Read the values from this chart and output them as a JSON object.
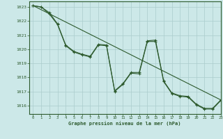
{
  "title": "Graphe pression niveau de la mer (hPa)",
  "background_color": "#cce8e8",
  "grid_color": "#aacccc",
  "line_color": "#2d5a2d",
  "xlim": [
    -0.5,
    23
  ],
  "ylim": [
    1015.4,
    1023.4
  ],
  "xticks": [
    0,
    1,
    2,
    3,
    4,
    5,
    6,
    7,
    8,
    9,
    10,
    11,
    12,
    13,
    14,
    15,
    16,
    17,
    18,
    19,
    20,
    21,
    22,
    23
  ],
  "yticks": [
    1016,
    1017,
    1018,
    1019,
    1020,
    1021,
    1022,
    1023
  ],
  "series1_x": [
    0,
    1,
    2,
    3,
    4,
    5,
    6,
    7,
    8,
    9,
    10,
    11,
    12,
    13,
    14,
    15,
    16,
    17,
    18,
    19,
    20,
    21,
    22,
    23
  ],
  "series1_y": [
    1023.1,
    1023.0,
    1022.6,
    1021.8,
    1020.3,
    1019.85,
    1019.65,
    1019.5,
    1020.35,
    1020.3,
    1017.05,
    1017.55,
    1018.35,
    1018.35,
    1020.6,
    1020.65,
    1017.75,
    1016.9,
    1016.7,
    1016.65,
    1016.1,
    1015.8,
    1015.8,
    1016.4
  ],
  "series2_x": [
    0,
    1,
    2,
    3,
    4,
    5,
    6,
    7,
    8,
    9,
    10,
    11,
    12,
    13,
    14,
    15,
    16,
    17,
    18,
    19,
    20,
    21,
    22,
    23
  ],
  "series2_y": [
    1023.1,
    1023.0,
    1022.5,
    1021.75,
    1020.25,
    1019.8,
    1019.6,
    1019.45,
    1020.3,
    1020.25,
    1017.0,
    1017.5,
    1018.3,
    1018.25,
    1020.55,
    1020.55,
    1017.7,
    1016.85,
    1016.65,
    1016.6,
    1016.05,
    1015.75,
    1015.75,
    1016.35
  ],
  "trend_x": [
    0,
    23
  ],
  "trend_y": [
    1023.1,
    1016.4
  ]
}
